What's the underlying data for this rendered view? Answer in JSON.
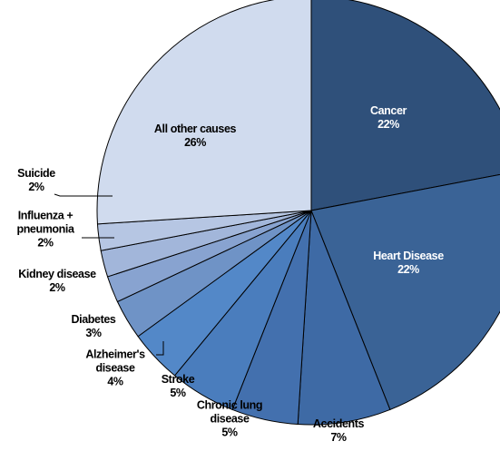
{
  "chart_data": {
    "type": "pie",
    "categories": [
      "Cancer",
      "Heart Disease",
      "Accidents",
      "Chronic lung disease",
      "Stroke",
      "Alzheimer's disease",
      "Diabetes",
      "Kidney disease",
      "Influenza + pneumonia",
      "Suicide",
      "All other causes"
    ],
    "values": [
      22,
      22,
      7,
      5,
      5,
      4,
      3,
      2,
      2,
      2,
      26
    ],
    "value_labels": [
      "22%",
      "22%",
      "7%",
      "5%",
      "5%",
      "4%",
      "3%",
      "2%",
      "2%",
      "2%",
      "26%"
    ],
    "colors": [
      "#2f507a",
      "#3a6396",
      "#3e6aa5",
      "#4370ae",
      "#4a7dbd",
      "#5388c8",
      "#6f93c6",
      "#88a3d0",
      "#a2b6da",
      "#b6c6e3",
      "#d0dbee"
    ]
  }
}
